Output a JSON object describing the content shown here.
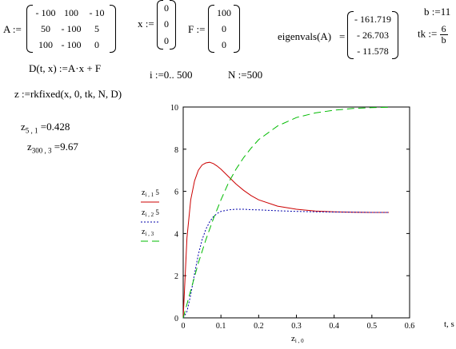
{
  "matrix_A": {
    "label": "A :=",
    "rows": [
      [
        "- 100",
        "100",
        "- 10"
      ],
      [
        "50",
        "- 100",
        "5"
      ],
      [
        "100",
        "- 100",
        "0"
      ]
    ]
  },
  "vector_x": {
    "label": "x :=",
    "values": [
      "0",
      "0",
      "0"
    ]
  },
  "vector_F": {
    "label": "F :=",
    "values": [
      "100",
      "0",
      "0"
    ]
  },
  "eigen": {
    "label": "eigenvals(A)",
    "equals": "=",
    "values": [
      "- 161.719",
      "- 26.703",
      "- 11.578"
    ]
  },
  "b_def": "b :=11",
  "tk_def": {
    "lhs": "tk :=",
    "num": "6",
    "den": "b"
  },
  "D_def": "D(t, x) :=A·x + F",
  "range_def": "i :=0.. 500",
  "N_def": "N :=500",
  "z_def": "z :=rkfixed(x, 0, tk, N, D)",
  "z51": {
    "name": "z",
    "sub": "5 , 1",
    "value": " =0.428"
  },
  "z3003": {
    "name": "z",
    "sub": "300 , 3",
    "value": " =9.67"
  },
  "chart_data": {
    "type": "line",
    "x_label": {
      "name": "z",
      "sub": "i , 0"
    },
    "x_axis_unit_label": "t, s",
    "xlim": [
      0,
      0.6
    ],
    "ylim": [
      0,
      10
    ],
    "x_ticks": [
      "0",
      "0.1",
      "0.2",
      "0.3",
      "0.4",
      "0.5",
      "0.6"
    ],
    "y_ticks": [
      "0",
      "2",
      "4",
      "6",
      "8",
      "10"
    ],
    "legend": [
      {
        "label": "z i , 1 5",
        "color": "#cc0000",
        "dash": "solid"
      },
      {
        "label": "z i , 2 5",
        "color": "#0000aa",
        "dash": "dotted"
      },
      {
        "label": "z i , 3",
        "color": "#00bb00",
        "dash": "dashed"
      }
    ],
    "series": [
      {
        "name": "z i,1 5",
        "color": "#cc0000",
        "dash": "solid",
        "x": [
          0,
          0.01,
          0.02,
          0.03,
          0.04,
          0.05,
          0.06,
          0.07,
          0.08,
          0.09,
          0.1,
          0.12,
          0.14,
          0.16,
          0.18,
          0.2,
          0.25,
          0.3,
          0.35,
          0.4,
          0.45,
          0.5,
          0.545
        ],
        "y": [
          0,
          3.8,
          5.6,
          6.5,
          7.0,
          7.25,
          7.35,
          7.38,
          7.32,
          7.2,
          7.05,
          6.7,
          6.35,
          6.05,
          5.8,
          5.6,
          5.3,
          5.15,
          5.07,
          5.03,
          5.01,
          5.0,
          5.0
        ]
      },
      {
        "name": "z i,2 5",
        "color": "#0000aa",
        "dash": "dotted",
        "x": [
          0,
          0.01,
          0.02,
          0.03,
          0.04,
          0.05,
          0.06,
          0.07,
          0.08,
          0.09,
          0.1,
          0.12,
          0.14,
          0.16,
          0.18,
          0.2,
          0.25,
          0.3,
          0.35,
          0.4,
          0.45,
          0.5,
          0.545
        ],
        "y": [
          0,
          0.3,
          1.1,
          2.1,
          3.0,
          3.7,
          4.2,
          4.55,
          4.8,
          4.95,
          5.05,
          5.12,
          5.15,
          5.15,
          5.13,
          5.12,
          5.08,
          5.05,
          5.03,
          5.02,
          5.01,
          5.0,
          5.0
        ]
      },
      {
        "name": "z i,3",
        "color": "#00bb00",
        "dash": "dashed",
        "x": [
          0,
          0.02,
          0.04,
          0.06,
          0.08,
          0.1,
          0.12,
          0.14,
          0.16,
          0.18,
          0.2,
          0.25,
          0.3,
          0.35,
          0.4,
          0.45,
          0.5,
          0.545
        ],
        "y": [
          0,
          1.3,
          2.6,
          3.7,
          4.7,
          5.6,
          6.4,
          7.05,
          7.6,
          8.05,
          8.45,
          9.1,
          9.5,
          9.72,
          9.85,
          9.93,
          9.97,
          9.99
        ]
      }
    ]
  }
}
